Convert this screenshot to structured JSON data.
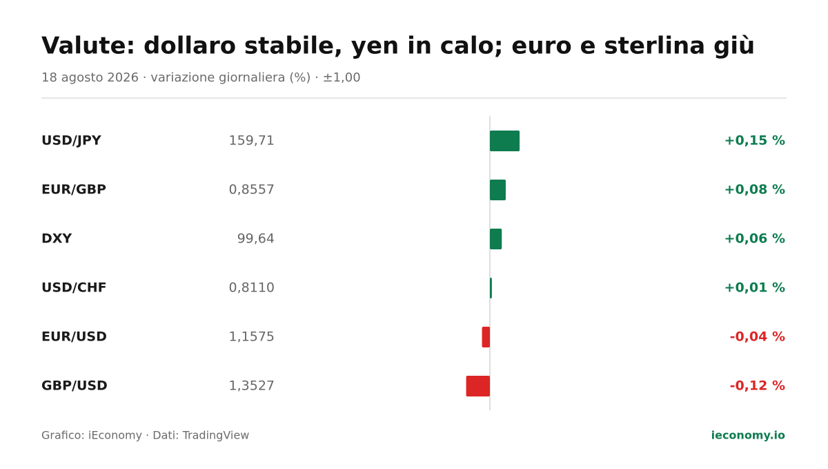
{
  "chart_data": {
    "type": "bar",
    "orientation": "horizontal",
    "title": "Valute: dollaro stabile, yen in calo; euro e sterlina giù",
    "subtitle": "18 agosto 2026 · variazione giornaliera (%) · ±1,00",
    "categories": [
      "USD/JPY",
      "EUR/GBP",
      "DXY",
      "USD/CHF",
      "EUR/USD",
      "GBP/USD"
    ],
    "prices": [
      "159,71",
      "0,8557",
      "99,64",
      "0,8110",
      "1,1575",
      "1,3527"
    ],
    "values": [
      0.15,
      0.08,
      0.06,
      0.01,
      -0.04,
      -0.12
    ],
    "value_labels": [
      "+0,15 %",
      "+0,08 %",
      "+0,06 %",
      "+0,01 %",
      "-0,04 %",
      "-0,12 %"
    ],
    "xlim": [
      -1,
      1
    ],
    "positive_color": "#0e7c4f",
    "negative_color": "#dc2626",
    "source": "Grafico: iEconomy · Dati: TradingView",
    "brand": "ieconomy.io"
  }
}
